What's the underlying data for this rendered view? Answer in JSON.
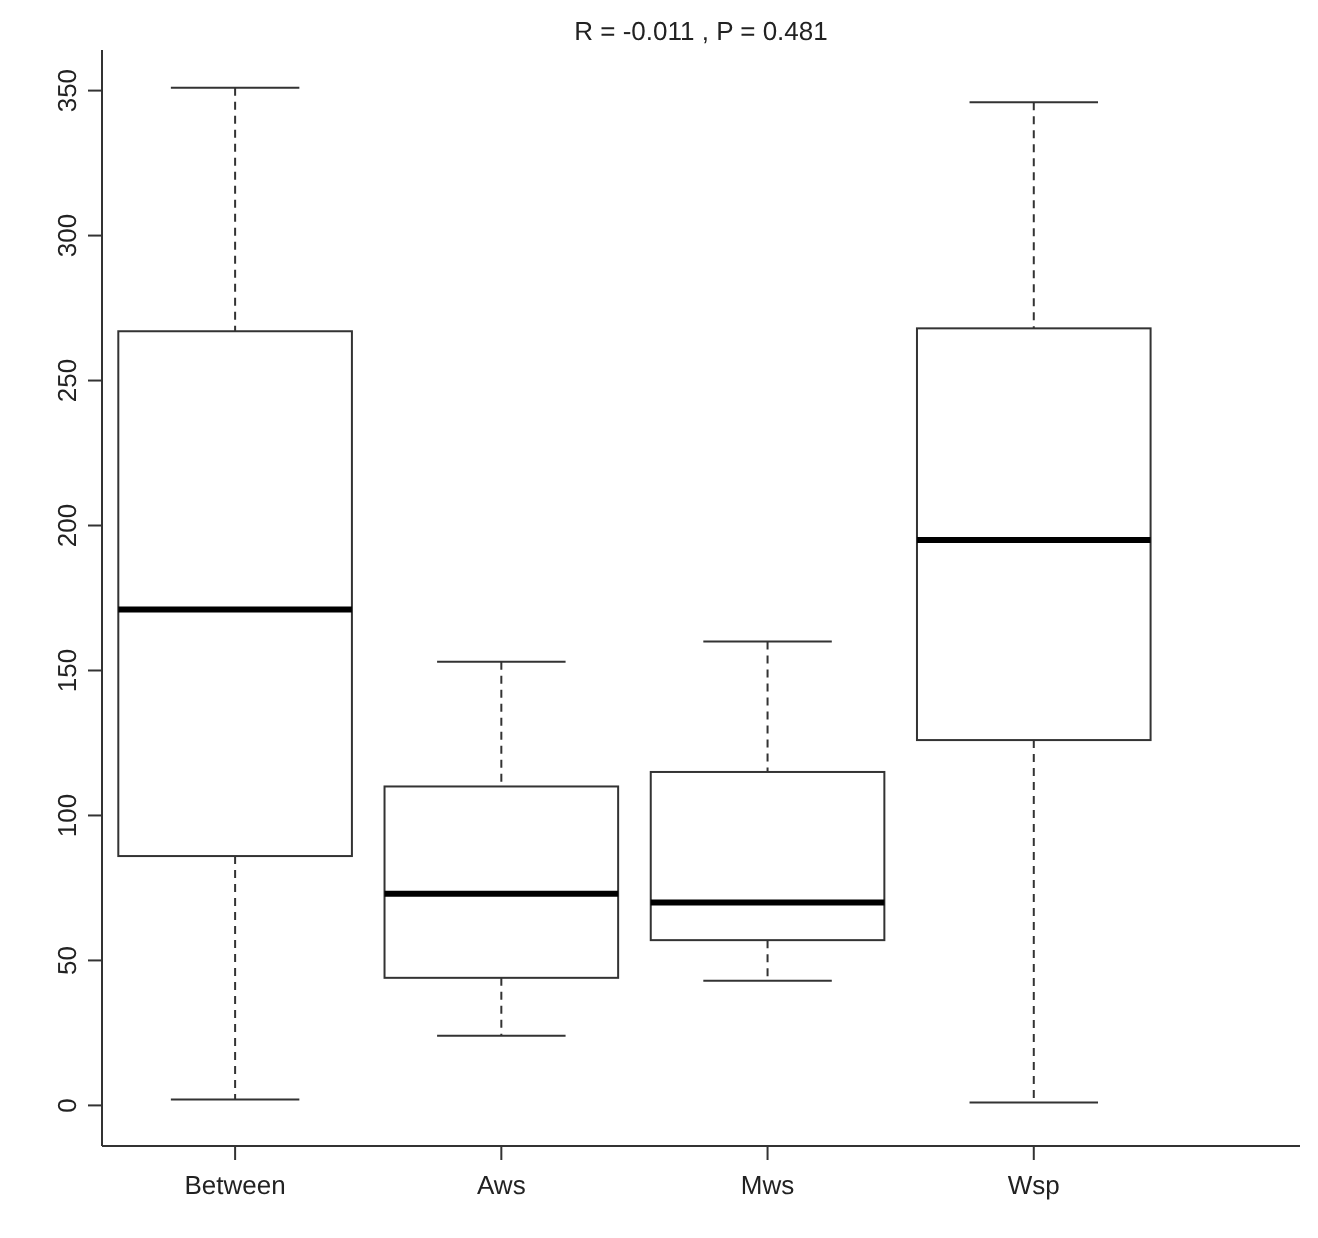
{
  "chart_data": {
    "type": "box",
    "title": "R =  -0.011 ,  P =  0.481",
    "categories": [
      "Between",
      "Aws",
      "Mws",
      "Wsp"
    ],
    "boxes": [
      {
        "low": 2,
        "q1": 86,
        "median": 171,
        "q3": 267,
        "high": 351
      },
      {
        "low": 24,
        "q1": 44,
        "median": 73,
        "q3": 110,
        "high": 153
      },
      {
        "low": 43,
        "q1": 57,
        "median": 70,
        "q3": 115,
        "high": 160
      },
      {
        "low": 1,
        "q1": 126,
        "median": 195,
        "q3": 268,
        "high": 346
      }
    ],
    "color": "#333333",
    "ylim": [
      -14,
      364
    ],
    "yticks": [
      0,
      50,
      100,
      150,
      200,
      250,
      300,
      350
    ]
  }
}
